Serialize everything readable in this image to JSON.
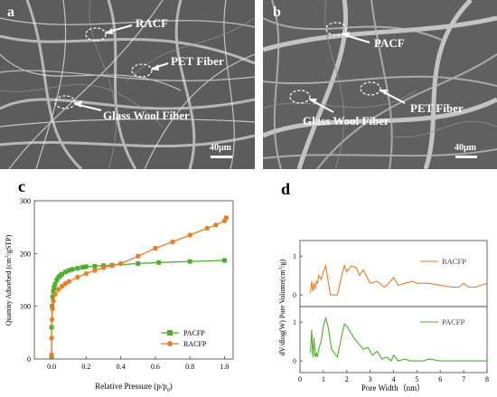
{
  "figure": {
    "panel_a": {
      "letter": "a",
      "labels": {
        "racf": "RACF",
        "pet": "PET Fiber",
        "glass": "Glass Wool Fiber"
      },
      "scale": "40μm"
    },
    "panel_b": {
      "letter": "b",
      "labels": {
        "pacf": "PACF",
        "pet": "PET Fiber",
        "glass": "Glass Wool Fiber"
      },
      "scale": "40μm"
    },
    "panel_c": {
      "letter": "c"
    },
    "panel_d": {
      "letter": "d"
    }
  },
  "chart_data": [
    {
      "type": "line",
      "id": "c",
      "xlabel": "Relative Pressure (p/p0)",
      "ylabel": "Quantity Adsorbed (cm3/gSTP)",
      "xlim": [
        -0.1,
        1.05
      ],
      "ylim": [
        0,
        300
      ],
      "xticks": [
        "0.0",
        "0.2",
        "0.4",
        "0.6",
        "0.8",
        "1.0"
      ],
      "yticks": [
        "0",
        "100",
        "200",
        "300"
      ],
      "legend_position": "bottom-right",
      "series": [
        {
          "name": "PACFP",
          "color": "#4daf2a",
          "marker": "square",
          "x": [
            0.0,
            0.0,
            0.003,
            0.006,
            0.01,
            0.015,
            0.02,
            0.03,
            0.04,
            0.05,
            0.06,
            0.08,
            0.1,
            0.12,
            0.15,
            0.18,
            0.2,
            0.25,
            0.3,
            0.35,
            0.5,
            0.62,
            0.8,
            1.0
          ],
          "y": [
            5,
            60,
            100,
            118,
            128,
            136,
            142,
            150,
            155,
            158,
            161,
            165,
            168,
            170,
            172,
            174,
            175,
            176,
            177,
            178,
            181,
            183,
            185,
            187
          ]
        },
        {
          "name": "RACFP",
          "color": "#ee7d24",
          "marker": "circle",
          "x": [
            0.0,
            0.0,
            0.002,
            0.005,
            0.01,
            0.02,
            0.04,
            0.06,
            0.08,
            0.1,
            0.15,
            0.2,
            0.25,
            0.3,
            0.35,
            0.4,
            0.5,
            0.6,
            0.7,
            0.8,
            0.9,
            0.95,
            1.0,
            1.01
          ],
          "y": [
            8,
            40,
            75,
            95,
            110,
            123,
            132,
            138,
            143,
            147,
            155,
            162,
            168,
            173,
            177,
            181,
            195,
            210,
            222,
            235,
            248,
            254,
            262,
            268
          ]
        }
      ]
    },
    {
      "type": "line",
      "id": "d",
      "xlabel": "Pore Width（nm）",
      "ylabel": "dV/dlog(W) Pore Volume(cm3/g)",
      "xlim": [
        0,
        8
      ],
      "ylim": [
        -0.3,
        1.4
      ],
      "xticks": [
        "0",
        "1",
        "2",
        "3",
        "4",
        "5",
        "6",
        "7",
        "8"
      ],
      "yticks": [
        "0",
        "1"
      ],
      "series": [
        {
          "name": "RACFP",
          "color": "#ee7d24",
          "x": [
            0.45,
            0.5,
            0.55,
            0.6,
            0.65,
            0.7,
            0.75,
            0.8,
            0.9,
            1.0,
            1.1,
            1.15,
            1.3,
            1.6,
            1.8,
            1.9,
            2.0,
            2.2,
            2.4,
            2.55,
            2.7,
            3.0,
            3.3,
            3.6,
            3.8,
            4.0,
            4.2,
            4.5,
            4.8,
            5.0,
            5.5,
            6.0,
            6.5,
            6.8,
            7.0,
            7.2,
            7.5,
            8.0
          ],
          "y": [
            0.05,
            0.35,
            0.1,
            0.3,
            0.15,
            0.35,
            0.3,
            0.5,
            0.4,
            0.6,
            0.75,
            0.55,
            0.0,
            0.0,
            0.55,
            0.75,
            0.6,
            0.75,
            0.7,
            0.5,
            0.65,
            0.3,
            0.35,
            0.2,
            0.3,
            0.45,
            0.25,
            0.3,
            0.35,
            0.3,
            0.3,
            0.25,
            0.2,
            0.2,
            0.3,
            0.2,
            0.2,
            0.3
          ]
        },
        {
          "name": "PACFP",
          "color": "#4daf2a",
          "x": [
            0.45,
            0.5,
            0.55,
            0.6,
            0.65,
            0.7,
            0.75,
            0.8,
            0.9,
            1.0,
            1.1,
            1.2,
            1.35,
            1.6,
            1.8,
            1.9,
            2.0,
            2.1,
            2.3,
            2.5,
            2.7,
            2.9,
            3.1,
            3.3,
            3.5,
            3.7,
            3.9,
            4.0,
            4.2,
            4.5,
            4.7,
            5.0,
            5.3,
            5.5,
            6.0,
            6.5,
            7.0,
            7.5,
            8.0
          ],
          "y": [
            0.2,
            0.8,
            0.1,
            0.6,
            0.1,
            0.2,
            0.1,
            0.3,
            0.5,
            0.9,
            1.1,
            0.9,
            0.3,
            0.1,
            0.7,
            0.95,
            0.9,
            0.8,
            0.6,
            0.45,
            0.3,
            0.35,
            0.15,
            0.25,
            0.05,
            0.1,
            0.0,
            0.15,
            0.0,
            0.05,
            0.0,
            0.0,
            0.0,
            0.05,
            0.0,
            0.0,
            0.0,
            0.0,
            0.0
          ]
        }
      ]
    }
  ]
}
